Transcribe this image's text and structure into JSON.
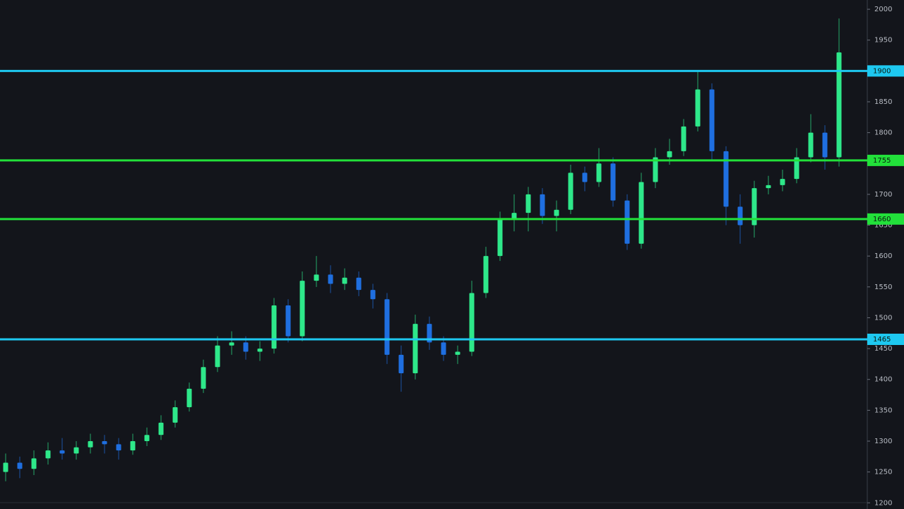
{
  "chart_data": {
    "type": "candlestick",
    "up_color": "#2ee88a",
    "down_color": "#1f6fe0",
    "level_colors": {
      "blue": "#1ec8f0",
      "green": "#22e03a"
    },
    "ylim": [
      1190,
      2015
    ],
    "yticks": [
      1200,
      1250,
      1300,
      1350,
      1400,
      1450,
      1500,
      1550,
      1600,
      1650,
      1700,
      1750,
      1800,
      1850,
      1900,
      1950,
      2000
    ],
    "levels": [
      {
        "value": 1900,
        "color": "#1ec8f0"
      },
      {
        "value": 1755,
        "color": "#22e03a"
      },
      {
        "value": 1660,
        "color": "#22e03a"
      },
      {
        "value": 1465,
        "color": "#1ec8f0"
      }
    ],
    "open": [
      1250,
      1265,
      1255,
      1272,
      1285,
      1280,
      1290,
      1300,
      1295,
      1285,
      1300,
      1310,
      1330,
      1355,
      1385,
      1420,
      1455,
      1460,
      1445,
      1450,
      1520,
      1470,
      1560,
      1570,
      1555,
      1565,
      1545,
      1530,
      1440,
      1410,
      1490,
      1460,
      1440,
      1445,
      1540,
      1600,
      1660,
      1670,
      1700,
      1665,
      1675,
      1735,
      1720,
      1750,
      1690,
      1620,
      1720,
      1760,
      1770,
      1810,
      1870,
      1770,
      1680,
      1650,
      1710,
      1715,
      1725,
      1760,
      1800,
      1760
    ],
    "high": [
      1280,
      1275,
      1285,
      1298,
      1305,
      1300,
      1312,
      1310,
      1305,
      1312,
      1322,
      1342,
      1366,
      1395,
      1432,
      1470,
      1478,
      1470,
      1462,
      1532,
      1530,
      1575,
      1600,
      1585,
      1580,
      1575,
      1555,
      1540,
      1455,
      1505,
      1502,
      1470,
      1455,
      1560,
      1615,
      1672,
      1700,
      1712,
      1710,
      1690,
      1748,
      1745,
      1775,
      1760,
      1700,
      1735,
      1775,
      1790,
      1822,
      1900,
      1880,
      1778,
      1700,
      1722,
      1730,
      1740,
      1775,
      1830,
      1812,
      1985
    ],
    "low": [
      1235,
      1240,
      1245,
      1262,
      1270,
      1270,
      1280,
      1280,
      1270,
      1278,
      1292,
      1302,
      1322,
      1348,
      1378,
      1412,
      1440,
      1432,
      1430,
      1442,
      1460,
      1462,
      1550,
      1540,
      1545,
      1535,
      1515,
      1425,
      1380,
      1400,
      1448,
      1430,
      1425,
      1438,
      1532,
      1592,
      1640,
      1640,
      1652,
      1640,
      1668,
      1705,
      1712,
      1680,
      1610,
      1612,
      1710,
      1748,
      1762,
      1802,
      1755,
      1650,
      1620,
      1630,
      1700,
      1705,
      1718,
      1752,
      1740,
      1745
    ],
    "close": [
      1265,
      1255,
      1272,
      1285,
      1280,
      1290,
      1300,
      1295,
      1285,
      1300,
      1310,
      1330,
      1355,
      1385,
      1420,
      1455,
      1460,
      1445,
      1450,
      1520,
      1470,
      1560,
      1570,
      1555,
      1565,
      1545,
      1530,
      1440,
      1410,
      1490,
      1460,
      1440,
      1445,
      1540,
      1600,
      1660,
      1670,
      1700,
      1665,
      1675,
      1735,
      1720,
      1750,
      1690,
      1620,
      1720,
      1760,
      1770,
      1810,
      1870,
      1770,
      1680,
      1650,
      1710,
      1715,
      1725,
      1760,
      1800,
      1760,
      1930
    ]
  }
}
